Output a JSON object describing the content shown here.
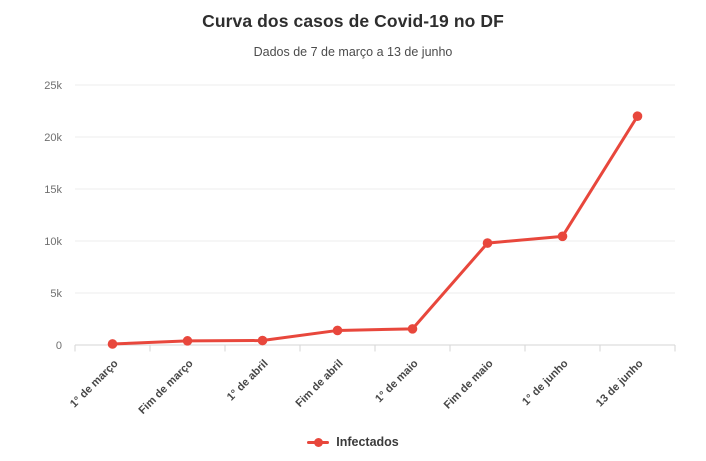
{
  "header": {
    "title": "Curva dos casos de Covid-19 no DF",
    "subtitle": "Dados de 7 de março a 13 de junho"
  },
  "legend": {
    "items": [
      {
        "label": "Infectados",
        "color": "#e8473c",
        "marker": "line-dot"
      }
    ]
  },
  "chart_data": {
    "type": "line",
    "title": "Curva dos casos de Covid-19 no DF",
    "subtitle": "Dados de 7 de março a 13 de junho",
    "categories": [
      "1° de março",
      "Fim de março",
      "1° de abril",
      "Fim de abril",
      "1° de maio",
      "Fim de maio",
      "1° de junho",
      "13 de junho"
    ],
    "series": [
      {
        "name": "Infectados",
        "color": "#e8473c",
        "values": [
          100,
          400,
          430,
          1400,
          1550,
          9800,
          10450,
          22000
        ]
      }
    ],
    "xlabel": "",
    "ylabel": "",
    "ylim": [
      0,
      25000
    ],
    "ytick_values": [
      0,
      5000,
      10000,
      15000,
      20000,
      25000
    ],
    "ytick_labels": [
      "0",
      "5k",
      "10k",
      "15k",
      "20k",
      "25k"
    ],
    "grid": "horizontal",
    "legend_position": "bottom",
    "marker": "circle"
  },
  "colors": {
    "line": "#e8473c",
    "grid": "#ececec",
    "axis": "#d6d6d6",
    "title": "#2e2e2e",
    "subtitle": "#4c4c4c",
    "y_label": "#6f6f6f",
    "x_label": "#474747",
    "background": "#ffffff"
  }
}
